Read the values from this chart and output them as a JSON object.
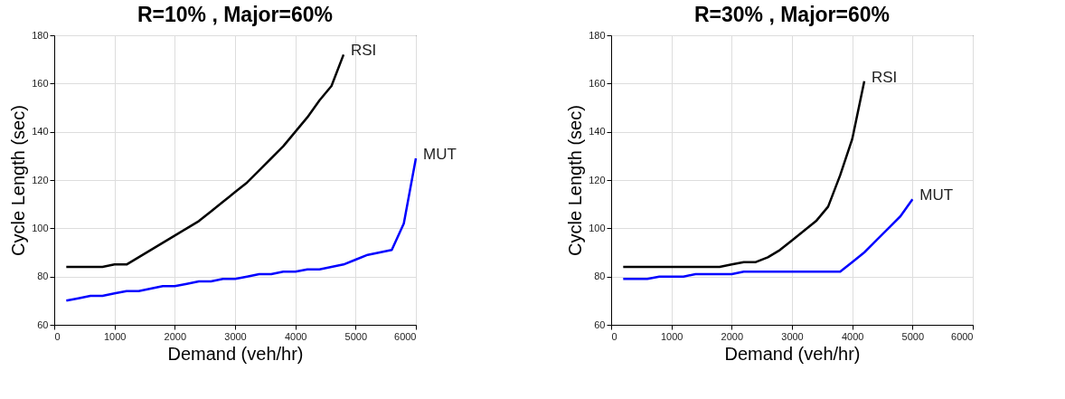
{
  "chart_data": [
    {
      "type": "line",
      "title": "R=10% , Major=60%",
      "xlabel": "Demand (veh/hr)",
      "ylabel": "Cycle Length (sec)",
      "xlim": [
        0,
        6000
      ],
      "xticks": [
        0,
        1000,
        2000,
        3000,
        4000,
        5000,
        6000
      ],
      "ylim": [
        60,
        180
      ],
      "yticks": [
        60,
        80,
        100,
        120,
        140,
        160,
        180
      ],
      "grid": true,
      "line_style": "solid",
      "series": [
        {
          "name": "RSI",
          "color": "#000000",
          "x": [
            200,
            400,
            600,
            800,
            1000,
            1200,
            1400,
            1600,
            1800,
            2000,
            2200,
            2400,
            2600,
            2800,
            3000,
            3200,
            3400,
            3600,
            3800,
            4000,
            4200,
            4400,
            4600,
            4800
          ],
          "values": [
            84,
            84,
            84,
            84,
            85,
            85,
            88,
            91,
            94,
            97,
            100,
            103,
            107,
            111,
            115,
            119,
            124,
            129,
            134,
            140,
            146,
            153,
            159,
            172
          ]
        },
        {
          "name": "MUT",
          "color": "#0000ff",
          "x": [
            200,
            400,
            600,
            800,
            1000,
            1200,
            1400,
            1600,
            1800,
            2000,
            2200,
            2400,
            2600,
            2800,
            3000,
            3200,
            3400,
            3600,
            3800,
            4000,
            4200,
            4400,
            4600,
            4800,
            5000,
            5200,
            5400,
            5600,
            5800,
            6000
          ],
          "values": [
            70,
            71,
            72,
            72,
            73,
            74,
            74,
            75,
            76,
            76,
            77,
            78,
            78,
            79,
            79,
            80,
            81,
            81,
            82,
            82,
            83,
            83,
            84,
            85,
            87,
            89,
            90,
            91,
            102,
            129
          ]
        }
      ]
    },
    {
      "type": "line",
      "title": "R=30% , Major=60%",
      "xlabel": "Demand (veh/hr)",
      "ylabel": "Cycle Length (sec)",
      "xlim": [
        0,
        6000
      ],
      "xticks": [
        0,
        1000,
        2000,
        3000,
        4000,
        5000,
        6000
      ],
      "ylim": [
        60,
        180
      ],
      "yticks": [
        60,
        80,
        100,
        120,
        140,
        160,
        180
      ],
      "grid": true,
      "line_style": "solid",
      "series": [
        {
          "name": "RSI",
          "color": "#000000",
          "x": [
            200,
            400,
            600,
            800,
            1000,
            1200,
            1400,
            1600,
            1800,
            2000,
            2200,
            2400,
            2600,
            2800,
            3000,
            3200,
            3400,
            3600,
            3800,
            4000,
            4200
          ],
          "values": [
            84,
            84,
            84,
            84,
            84,
            84,
            84,
            84,
            84,
            85,
            86,
            86,
            88,
            91,
            95,
            99,
            103,
            109,
            122,
            137,
            161
          ]
        },
        {
          "name": "MUT",
          "color": "#0000ff",
          "x": [
            200,
            400,
            600,
            800,
            1000,
            1200,
            1400,
            1600,
            1800,
            2000,
            2200,
            2400,
            2600,
            2800,
            3000,
            3200,
            3400,
            3600,
            3800,
            4000,
            4200,
            4400,
            4600,
            4800,
            5000
          ],
          "values": [
            79,
            79,
            79,
            80,
            80,
            80,
            81,
            81,
            81,
            81,
            82,
            82,
            82,
            82,
            82,
            82,
            82,
            82,
            82,
            86,
            90,
            95,
            100,
            105,
            112
          ]
        }
      ]
    }
  ]
}
